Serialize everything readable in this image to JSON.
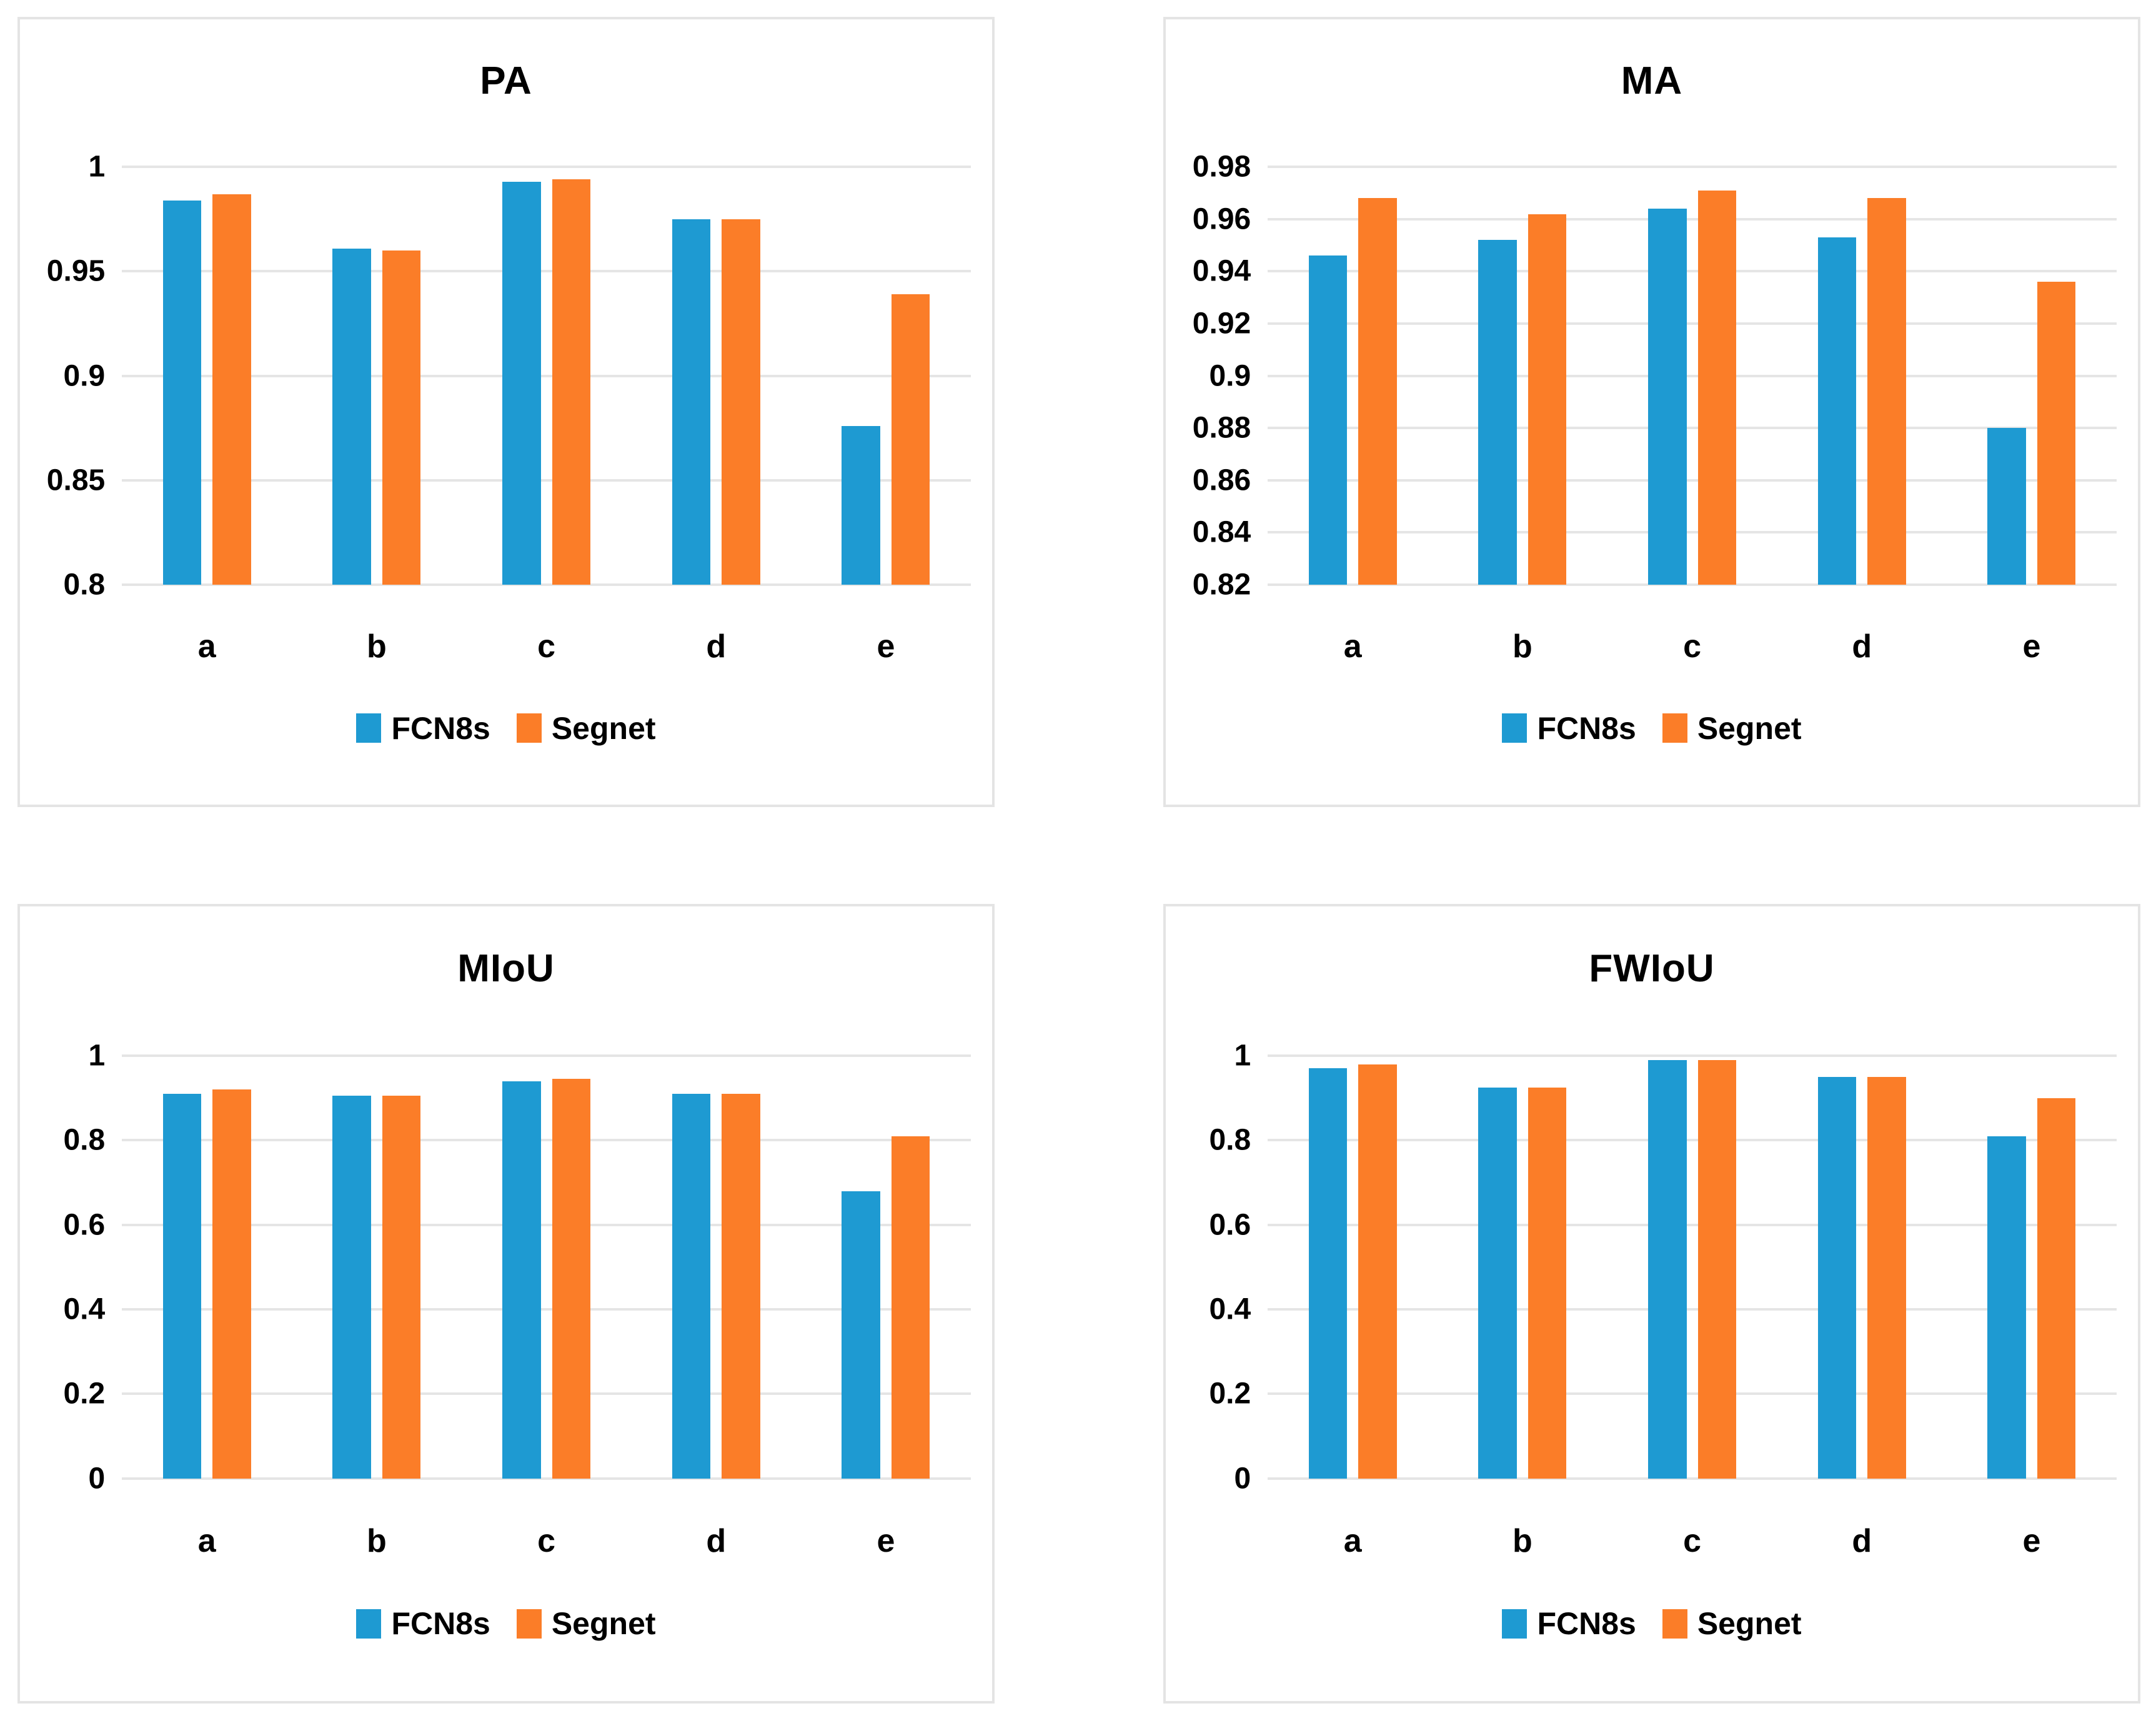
{
  "figure": {
    "background": "#ffffff",
    "panel_border_color": "#e4e4e4",
    "grid_color": "#e5e5e5",
    "text_color": "#000000"
  },
  "series_colors": {
    "FCN8s": "#1e9ad2",
    "Segnet": "#fb7d28"
  },
  "chart_data": [
    {
      "type": "bar",
      "title": "PA",
      "categories": [
        "a",
        "b",
        "c",
        "d",
        "e"
      ],
      "series": [
        {
          "name": "FCN8s",
          "color": "#1e9ad2",
          "values": [
            0.984,
            0.961,
            0.993,
            0.975,
            0.876
          ]
        },
        {
          "name": "Segnet",
          "color": "#fb7d28",
          "values": [
            0.987,
            0.96,
            0.994,
            0.975,
            0.939
          ]
        }
      ],
      "ylim": [
        0.8,
        1.0
      ],
      "yticks": [
        {
          "label": "1",
          "value": 1.0
        },
        {
          "label": "0.95",
          "value": 0.95
        },
        {
          "label": "0.9",
          "value": 0.9
        },
        {
          "label": "0.85",
          "value": 0.85
        },
        {
          "label": "0.8",
          "value": 0.8
        }
      ],
      "grid": true,
      "legend_position": "bottom"
    },
    {
      "type": "bar",
      "title": "MA",
      "categories": [
        "a",
        "b",
        "c",
        "d",
        "e"
      ],
      "series": [
        {
          "name": "FCN8s",
          "color": "#1e9ad2",
          "values": [
            0.946,
            0.952,
            0.964,
            0.953,
            0.88
          ]
        },
        {
          "name": "Segnet",
          "color": "#fb7d28",
          "values": [
            0.968,
            0.962,
            0.971,
            0.968,
            0.936
          ]
        }
      ],
      "ylim": [
        0.82,
        0.98
      ],
      "yticks": [
        {
          "label": "0.98",
          "value": 0.98
        },
        {
          "label": "0.96",
          "value": 0.96
        },
        {
          "label": "0.94",
          "value": 0.94
        },
        {
          "label": "0.92",
          "value": 0.92
        },
        {
          "label": "0.9",
          "value": 0.9
        },
        {
          "label": "0.88",
          "value": 0.88
        },
        {
          "label": "0.86",
          "value": 0.86
        },
        {
          "label": "0.84",
          "value": 0.84
        },
        {
          "label": "0.82",
          "value": 0.82
        }
      ],
      "grid": true,
      "legend_position": "bottom"
    },
    {
      "type": "bar",
      "title": "MIoU",
      "categories": [
        "a",
        "b",
        "c",
        "d",
        "e"
      ],
      "series": [
        {
          "name": "FCN8s",
          "color": "#1e9ad2",
          "values": [
            0.91,
            0.905,
            0.94,
            0.91,
            0.68
          ]
        },
        {
          "name": "Segnet",
          "color": "#fb7d28",
          "values": [
            0.92,
            0.905,
            0.945,
            0.91,
            0.81
          ]
        }
      ],
      "ylim": [
        0,
        1
      ],
      "yticks": [
        {
          "label": "1",
          "value": 1.0
        },
        {
          "label": "0.8",
          "value": 0.8
        },
        {
          "label": "0.6",
          "value": 0.6
        },
        {
          "label": "0.4",
          "value": 0.4
        },
        {
          "label": "0.2",
          "value": 0.2
        },
        {
          "label": "0",
          "value": 0
        }
      ],
      "grid": true,
      "legend_position": "bottom"
    },
    {
      "type": "bar",
      "title": "FWIoU",
      "categories": [
        "a",
        "b",
        "c",
        "d",
        "e"
      ],
      "series": [
        {
          "name": "FCN8s",
          "color": "#1e9ad2",
          "values": [
            0.97,
            0.925,
            0.99,
            0.95,
            0.81
          ]
        },
        {
          "name": "Segnet",
          "color": "#fb7d28",
          "values": [
            0.98,
            0.925,
            0.99,
            0.95,
            0.9
          ]
        }
      ],
      "ylim": [
        0,
        1
      ],
      "yticks": [
        {
          "label": "1",
          "value": 1.0
        },
        {
          "label": "0.8",
          "value": 0.8
        },
        {
          "label": "0.6",
          "value": 0.6
        },
        {
          "label": "0.4",
          "value": 0.4
        },
        {
          "label": "0.2",
          "value": 0.2
        },
        {
          "label": "0",
          "value": 0
        }
      ],
      "grid": true,
      "legend_position": "bottom"
    }
  ]
}
